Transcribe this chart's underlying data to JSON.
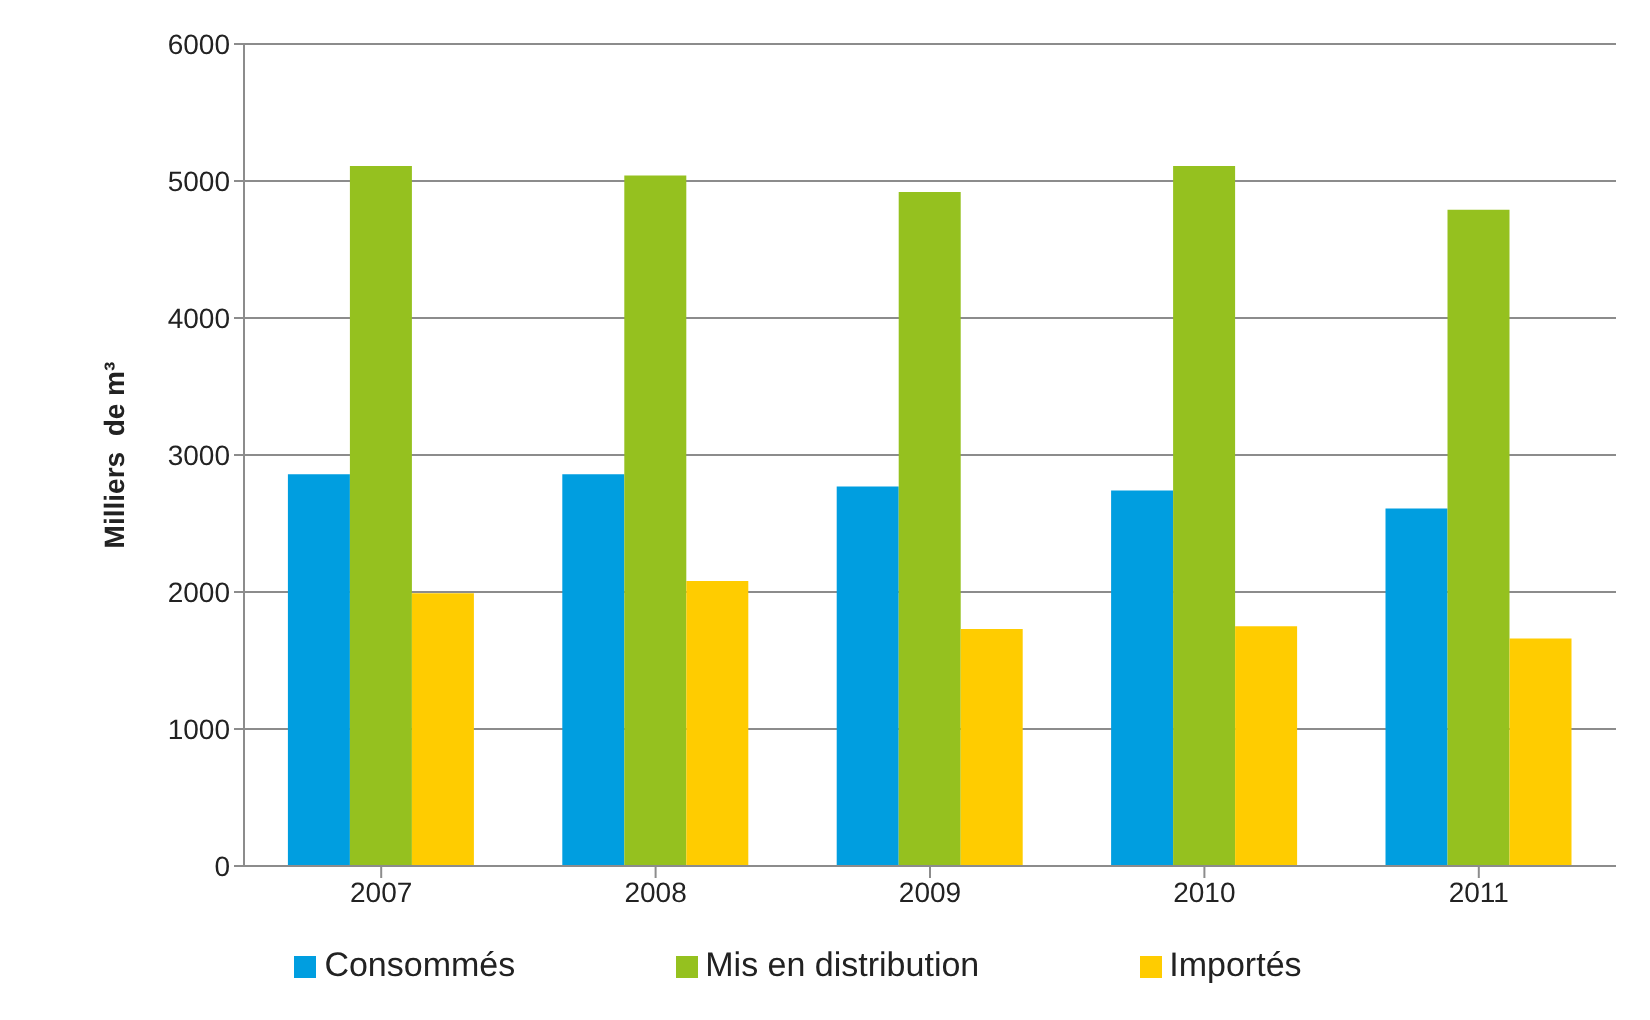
{
  "chart_data": {
    "type": "bar",
    "ylabel": "Milliers  de m³",
    "categories": [
      "2007",
      "2008",
      "2009",
      "2010",
      "2011"
    ],
    "series": [
      {
        "name": "Consommés",
        "color": "#009ee0",
        "values": [
          2860,
          2860,
          2770,
          2740,
          2610
        ]
      },
      {
        "name": "Mis en distribution",
        "color": "#95c11f",
        "values": [
          5110,
          5040,
          4920,
          5110,
          4790
        ]
      },
      {
        "name": "Importés",
        "color": "#ffcc00",
        "values": [
          1990,
          2080,
          1730,
          1750,
          1660
        ]
      }
    ],
    "ylim": [
      0,
      6000
    ],
    "yticks": [
      0,
      1000,
      2000,
      3000,
      4000,
      5000,
      6000
    ],
    "grid": "y",
    "legend": "bottom"
  }
}
